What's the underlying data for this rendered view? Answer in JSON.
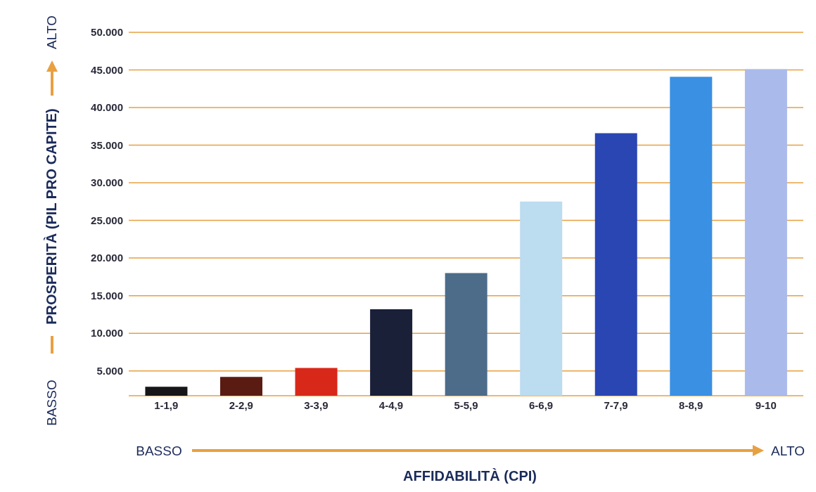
{
  "chart_data": {
    "type": "bar",
    "xlabel": "AFFIDABILITÀ (CPI)",
    "ylabel": "PROSPERITÀ (PIL PRO CAPITE)",
    "categories": [
      "1-1,9",
      "2-2,9",
      "3-3,9",
      "4-4,9",
      "5-5,9",
      "6-6,9",
      "7-7,9",
      "8-8,9",
      "9-10"
    ],
    "values": [
      2900,
      4200,
      5400,
      13200,
      18000,
      27500,
      36600,
      44100,
      45100
    ],
    "colors": [
      "#161618",
      "#5a1c12",
      "#d8281a",
      "#1a2038",
      "#4c6c8a",
      "#bcdcf0",
      "#2a46b2",
      "#3a90e2",
      "#aabaea"
    ],
    "ylim": [
      1700,
      50000
    ],
    "yticks": [
      {
        "value": 5000,
        "label": "5.000"
      },
      {
        "value": 10000,
        "label": "10.000"
      },
      {
        "value": 15000,
        "label": "15.000"
      },
      {
        "value": 20000,
        "label": "20.000"
      },
      {
        "value": 25000,
        "label": "25.000"
      },
      {
        "value": 30000,
        "label": "30.000"
      },
      {
        "value": 35000,
        "label": "35.000"
      },
      {
        "value": 40000,
        "label": "40.000"
      },
      {
        "value": 45000,
        "label": "45.000"
      },
      {
        "value": 50000,
        "label": "50.000"
      }
    ],
    "grid": "y",
    "annotations": [
      "BASSO",
      "ALTO",
      "BASSO",
      "ALTO"
    ]
  }
}
